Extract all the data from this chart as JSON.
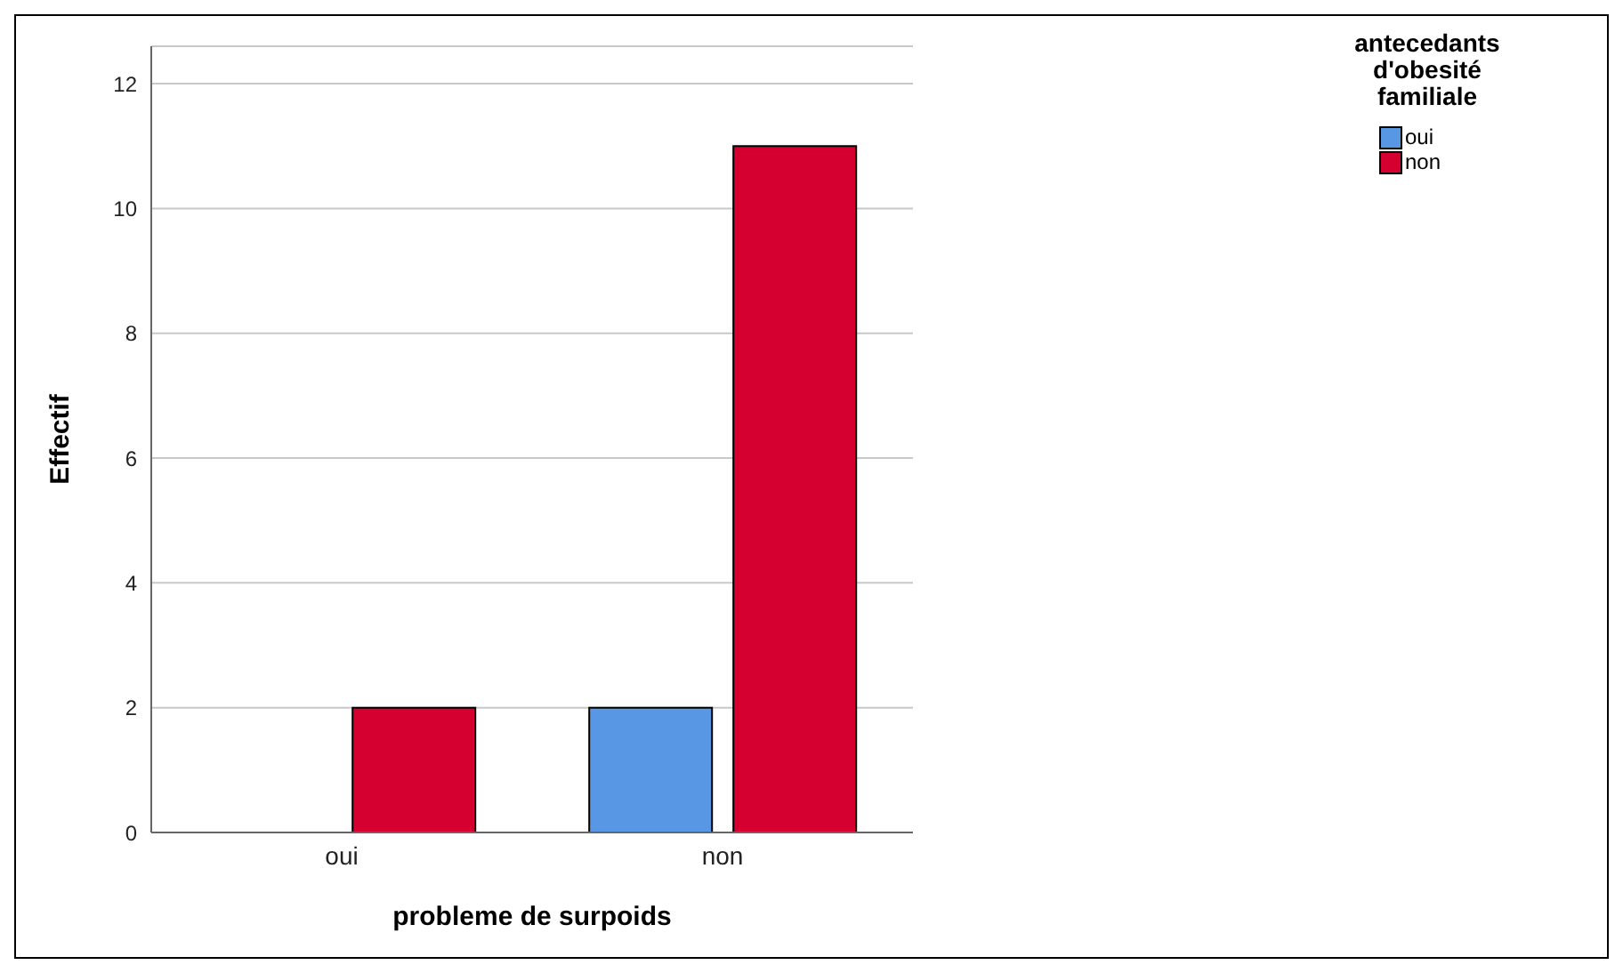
{
  "chart_data": {
    "type": "bar",
    "xlabel": "probleme de surpoids",
    "ylabel": "Effectif",
    "legend_title": "antecedants d'obesité familiale",
    "categories": [
      "oui",
      "non"
    ],
    "series": [
      {
        "name": "oui",
        "color": "#5897e4",
        "values": [
          0,
          2
        ]
      },
      {
        "name": "non",
        "color": "#d5002f",
        "values": [
          2,
          11
        ]
      }
    ],
    "ylim": [
      0,
      12.6
    ],
    "yticks": [
      0,
      2,
      4,
      6,
      8,
      10,
      12
    ],
    "grid": "y",
    "legend": "top right"
  }
}
